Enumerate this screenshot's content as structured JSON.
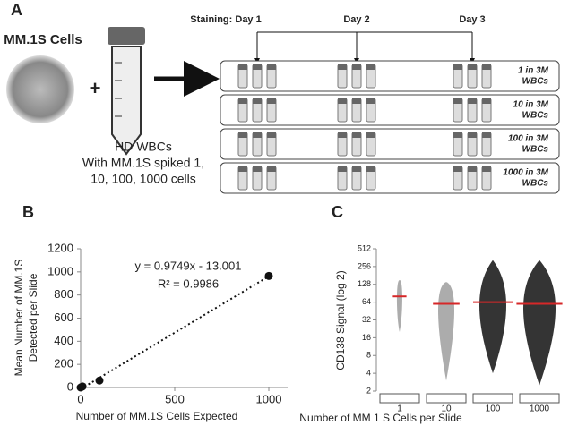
{
  "panels": [
    "A",
    "B",
    "C"
  ],
  "diagram": {
    "cells_title": "MM.1S Cells",
    "plus": "+",
    "wbc_lines": [
      "HD WBCs",
      "With MM.1S spiked 1,",
      "10, 100, 1000 cells"
    ],
    "days": [
      "Staining: Day 1",
      "Day 2",
      "Day 3"
    ],
    "rows": [
      [
        "1 in 3M",
        "WBCs"
      ],
      [
        "10 in 3M",
        "WBCs"
      ],
      [
        "100 in 3M",
        "WBCs"
      ],
      [
        "1000 in 3M",
        "WBCs"
      ]
    ]
  },
  "chart_data": [
    {
      "type": "scatter",
      "x_label": "Number of MM.1S Cells Expected",
      "y_label": [
        "Mean Number of MM.1S",
        "Detected per Slide"
      ],
      "x": [
        0,
        10,
        100,
        1000
      ],
      "values": [
        0,
        9,
        60,
        965
      ],
      "errors": [
        0,
        0,
        0,
        30
      ],
      "color": "#111",
      "trendline": {
        "slope": 0.9749,
        "intercept": -13.001
      },
      "annotations": [
        "y = 0.9749x - 13.001",
        "R² = 0.9986"
      ],
      "xlim": [
        0,
        1100
      ],
      "xticks": [
        0,
        500,
        1000
      ],
      "ylim": [
        0,
        1200
      ],
      "yticks": [
        0,
        200,
        400,
        600,
        800,
        1000,
        1200
      ]
    },
    {
      "type": "beeswarm",
      "x_label": "Number of MM 1 S Cells per Slide",
      "y_label": "CD138 Signal (log 2)",
      "log_base": 2,
      "categories": [
        "1",
        "10",
        "100",
        "1000"
      ],
      "means": [
        80,
        60,
        64,
        60
      ],
      "mins": [
        20,
        3,
        4,
        2.5
      ],
      "maxs": [
        150,
        140,
        330,
        330
      ],
      "color": "#111",
      "mean_color": "#d62728",
      "ylim": [
        2,
        512
      ],
      "yticks": [
        2,
        4,
        8,
        16,
        32,
        64,
        128,
        256,
        512
      ]
    }
  ]
}
